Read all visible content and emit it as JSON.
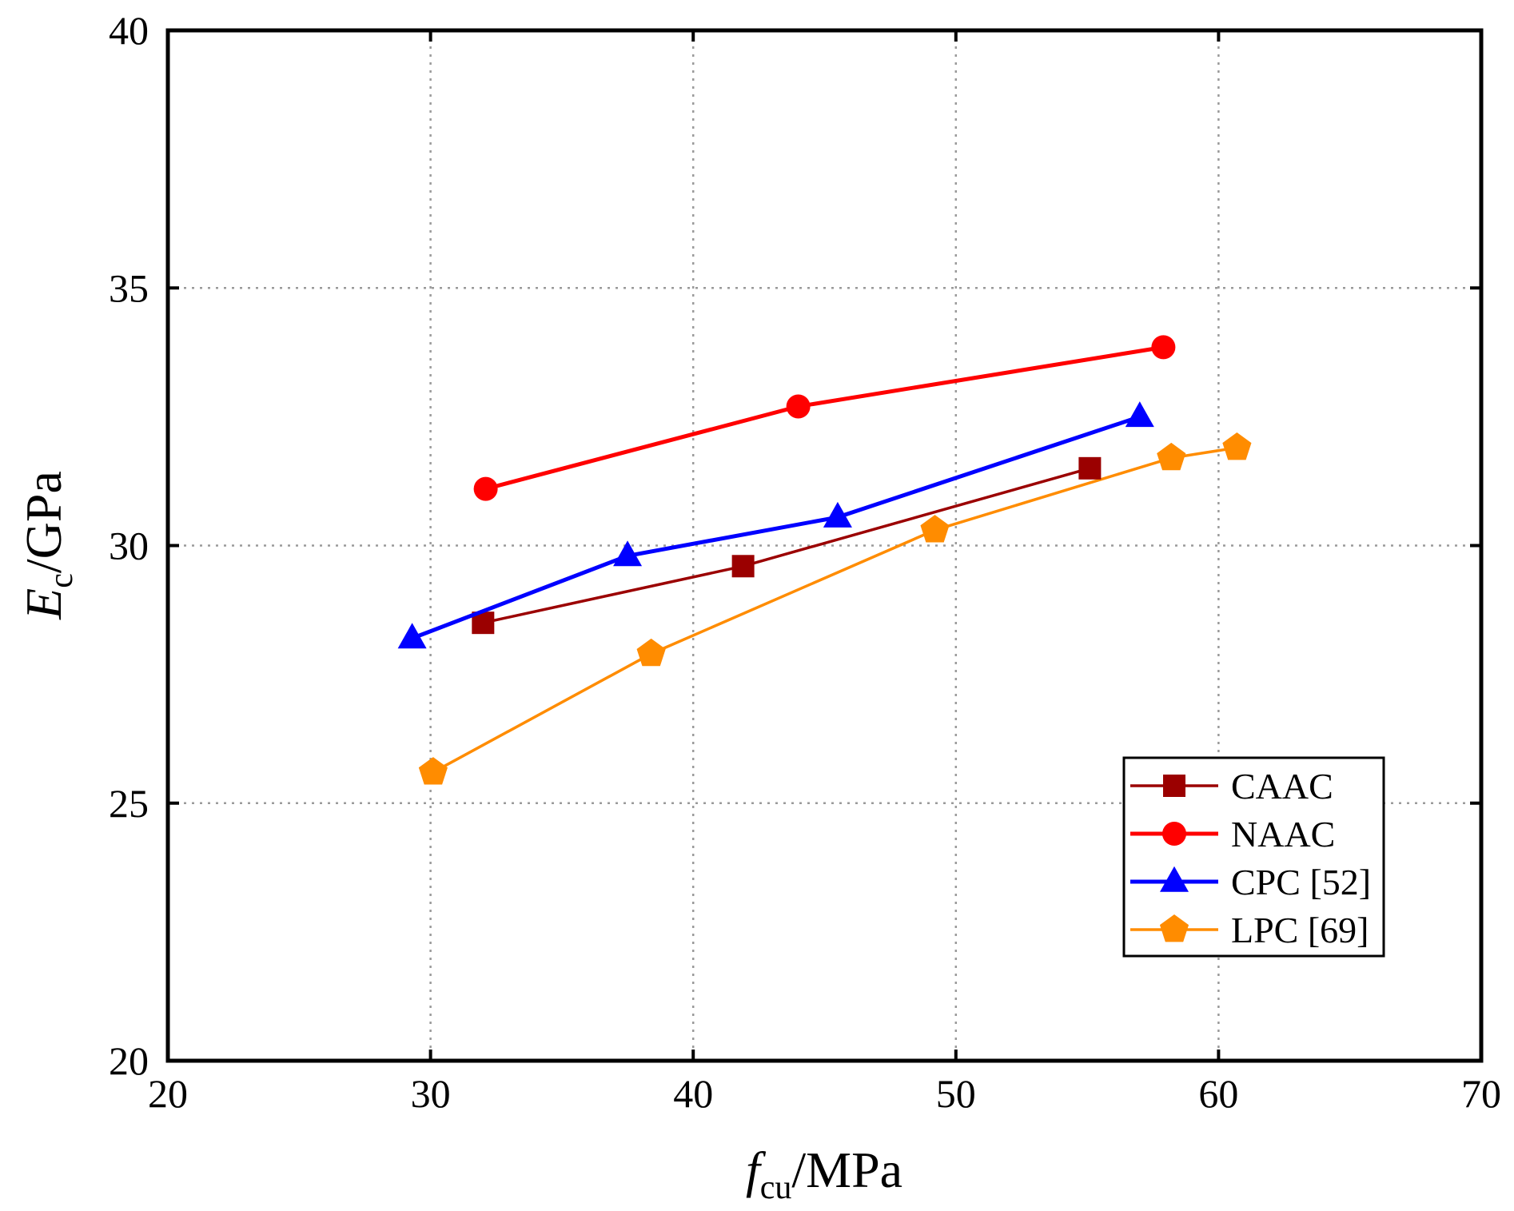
{
  "chart_data": {
    "type": "line",
    "title": "",
    "xlabel": {
      "main": "f",
      "sub": "cu",
      "unit": "/MPa"
    },
    "ylabel": {
      "main": "E",
      "sub": "c",
      "unit": "/GPa"
    },
    "xlim": [
      20,
      70
    ],
    "ylim": [
      20,
      40
    ],
    "xticks": [
      20,
      30,
      40,
      50,
      60,
      70
    ],
    "yticks": [
      20,
      25,
      30,
      35,
      40
    ],
    "xtick_labels": [
      "20",
      "30",
      "40",
      "50",
      "60",
      "70"
    ],
    "ytick_labels": [
      "20",
      "25",
      "30",
      "35",
      "40"
    ],
    "grid": true,
    "legend_position": "bottom-right",
    "series": [
      {
        "name": "CAAC",
        "color": "#9b0000",
        "marker": "square",
        "x": [
          32.0,
          41.9,
          55.1
        ],
        "y": [
          28.5,
          29.6,
          31.5
        ]
      },
      {
        "name": "NAAC",
        "color": "#ff0000",
        "marker": "circle",
        "x": [
          32.1,
          44.0,
          57.9
        ],
        "y": [
          31.1,
          32.7,
          33.85
        ]
      },
      {
        "name": "CPC [52]",
        "color": "#0000ff",
        "marker": "triangle",
        "x": [
          29.3,
          37.5,
          45.5,
          57.0
        ],
        "y": [
          28.2,
          29.8,
          30.55,
          32.5
        ]
      },
      {
        "name": "LPC [69]",
        "color": "#ff8c00",
        "marker": "pentagon",
        "x": [
          30.1,
          38.4,
          49.2,
          58.2,
          60.7
        ],
        "y": [
          25.6,
          27.9,
          30.3,
          31.7,
          31.9
        ]
      }
    ]
  }
}
